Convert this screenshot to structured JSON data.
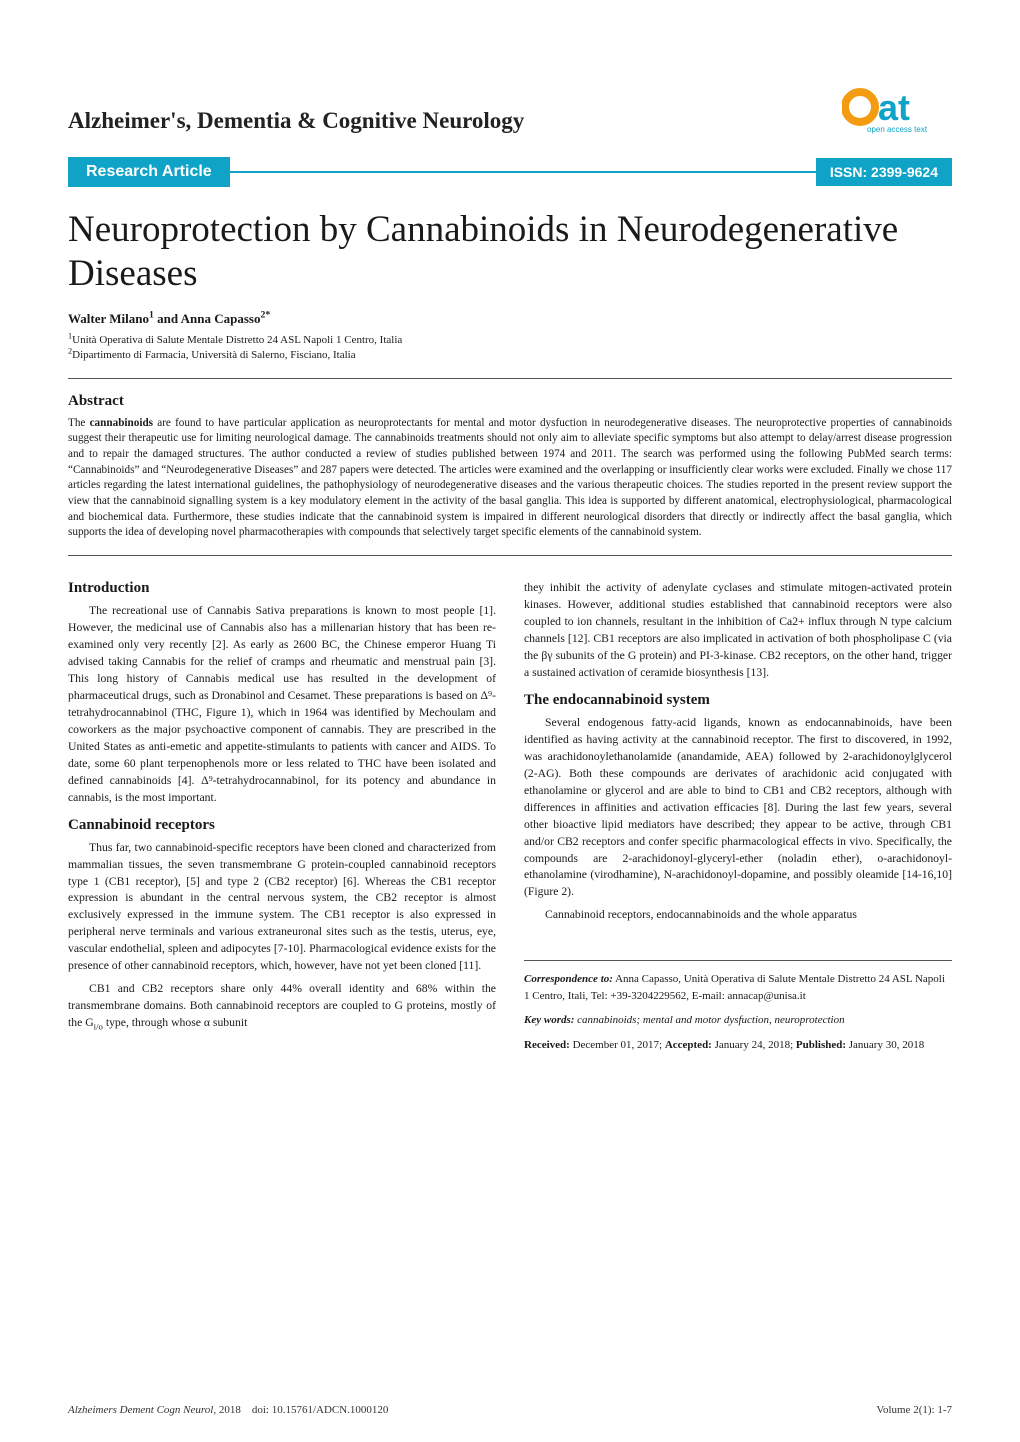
{
  "journal_name": "Alzheimer's, Dementia & Cognitive Neurology",
  "logo": {
    "main_text": "oat",
    "sub_text": "open access text",
    "accent_color": "#f39c12",
    "text_color": "#0fa4c7"
  },
  "badge": {
    "article_type": "Research Article",
    "issn": "ISSN: 2399-9624",
    "bg_color": "#0fa4c7",
    "text_color": "#ffffff"
  },
  "title": "Neuroprotection by Cannabinoids in Neurodegenerative Diseases",
  "authors_html": "Walter Milano<span class='sup'>1</span> and Anna Capasso<span class='sup'>2*</span>",
  "affiliations": [
    "<span class='sup'>1</span>Unità Operativa di Salute Mentale  Distretto 24  ASL  Napoli 1 Centro, Italia",
    "<span class='sup'>2</span>Dipartimento di Farmacia, Università di Salerno, Fisciano, Italia"
  ],
  "abstract_heading": "Abstract",
  "abstract_html": "The <b>cannabinoids</b> are found to have particular application as neuroprotectants for mental and motor dysfuction in neurodegenerative diseases. The neuroprotective properties of cannabinoids suggest their therapeutic use for limiting neurological damage. The cannabinoids treatments should not only aim to alleviate specific symptoms but also attempt to delay/arrest disease progression and to repair the damaged structures. The author conducted a review of studies published between 1974 and 2011. The search was performed using the following PubMed search terms: “Cannabinoids” and “Neurodegenerative Diseases” and 287 papers were detected. The articles were examined and the overlapping or insufficiently clear works were excluded. Finally we chose 117 articles regarding the latest international guidelines, the pathophysiology of neurodegenerative diseases and the various therapeutic choices. The studies reported in the present review support the view that the cannabinoid signalling system is a key modulatory element in the activity of the basal ganglia. This idea is supported by different anatomical, electrophysiological, pharmacological and biochemical data. Furthermore, these studies indicate that the cannabinoid system is impaired in different neurological disorders that directly or indirectly affect the basal ganglia, which supports the idea of developing novel pharmacotherapies with compounds that selectively target specific elements of the cannabinoid system.",
  "left_col": {
    "intro_heading": "Introduction",
    "intro_p": "The recreational use of Cannabis Sativa preparations is known to most people [1]. However, the medicinal use of Cannabis also has a millenarian history that has been re-examined only very recently [2]. As early as 2600 BC, the Chinese emperor Huang Ti advised taking Cannabis for the relief of cramps and rheumatic and menstrual pain [3]. This long history of Cannabis medical use has resulted in the development of pharmaceutical drugs, such as Dronabinol and Cesamet. These preparations is based on Δ⁹-tetrahydrocannabinol (THC, Figure 1), which in 1964 was identified by Mechoulam and coworkers as the major psychoactive component of cannabis. They are prescribed in the United States as anti-emetic and appetite-stimulants to patients with cancer and AIDS. To date, some 60 plant terpenophenols more or less related to THC have been isolated and defined cannabinoids [4]. Δ⁹-tetrahydrocannabinol, for its potency and abundance in cannabis, is the most important.",
    "receptors_heading": "Cannabinoid receptors",
    "receptors_p1": "Thus far, two cannabinoid-specific receptors have been cloned and characterized from mammalian tissues, the seven transmembrane G protein-coupled cannabinoid receptors type 1 (CB1 receptor), [5] and type 2 (CB2 receptor) [6]. Whereas the CB1 receptor expression is abundant in the central nervous system, the CB2 receptor is almost exclusively expressed in the immune system. The CB1 receptor is also expressed in peripheral nerve terminals and various extraneuronal sites such as the testis, uterus, eye, vascular endothelial, spleen and adipocytes [7-10]. Pharmacological evidence exists for the presence of other cannabinoid receptors, which, however, have not yet been cloned [11].",
    "receptors_p2": "CB1 and CB2 receptors share only 44% overall identity and 68% within the transmembrane domains. Both cannabinoid receptors are coupled to G proteins, mostly of the G<sub style='font-size:0.75em'>i/o</sub> type, through whose α subunit"
  },
  "right_col": {
    "top_p": "they inhibit the activity of adenylate cyclases and stimulate mitogen-activated protein kinases. However, additional studies established that cannabinoid receptors were also coupled to ion channels, resultant in the inhibition of Ca2+ influx through N type calcium channels [12]. CB1 receptors are also implicated in activation of both phospholipase C (via the βγ subunits of the G protein) and PI-3-kinase. CB2 receptors, on the other hand, trigger a sustained activation of ceramide biosynthesis [13].",
    "endo_heading": "The endocannabinoid system",
    "endo_p1": "Several endogenous fatty-acid ligands, known as endocannabinoids, have been identified as having activity at the cannabinoid receptor. The first to discovered, in 1992, was arachidonoylethanolamide (anandamide, AEA) followed by 2-arachidonoylglycerol (2-AG). Both these compounds are derivates of arachidonic acid conjugated with ethanolamine or glycerol and are able to bind to CB1 and CB2 receptors, although with differences in affinities and activation efficacies [8]. During the last few years, several other bioactive lipid mediators have described; they appear to be active, through CB1 and/or CB2 receptors and confer specific pharmacological effects in vivo. Specifically, the compounds are 2-arachidonoyl-glyceryl-ether (noladin ether), o-arachidonoyl-ethanolamine (virodhamine), N-arachidonoyl-dopamine, and possibly oleamide [14-16,10] (Figure 2).",
    "endo_p2": "Cannabinoid receptors, endocannabinoids and the whole apparatus"
  },
  "correspondence": {
    "corr_html": "<b><i>Correspondence to:</i></b> Anna Capasso, Unità Operativa di Salute Mentale  Distretto 24  ASL  Napoli 1 Centro, Itali, Tel: +39-3204229562, E-mail: annacap@unisa.it",
    "keywords_html": "<b><i>Key words:</i></b> <i>cannabinoids; mental and motor dysfuction, neuroprotection</i>",
    "dates_html": "<b>Received:</b> December 01, 2017; <b>Accepted:</b> January 24, 2018; <b>Published:</b> January 30, 2018"
  },
  "footer": {
    "left_html": "<i>Alzheimers Dement Cogn Neurol</i>, 2018&nbsp;&nbsp;&nbsp;&nbsp;doi: 10.15761/ADCN.1000120",
    "right": "Volume 2(1): 1-7"
  },
  "colors": {
    "accent": "#0fa4c7",
    "logo_orange": "#f39c12",
    "rule": "#555555",
    "bg": "#ffffff"
  },
  "typography": {
    "body_font": "Georgia, serif",
    "title_size_pt": 28,
    "heading_size_pt": 11,
    "body_size_pt": 9,
    "abstract_size_pt": 8.5
  }
}
